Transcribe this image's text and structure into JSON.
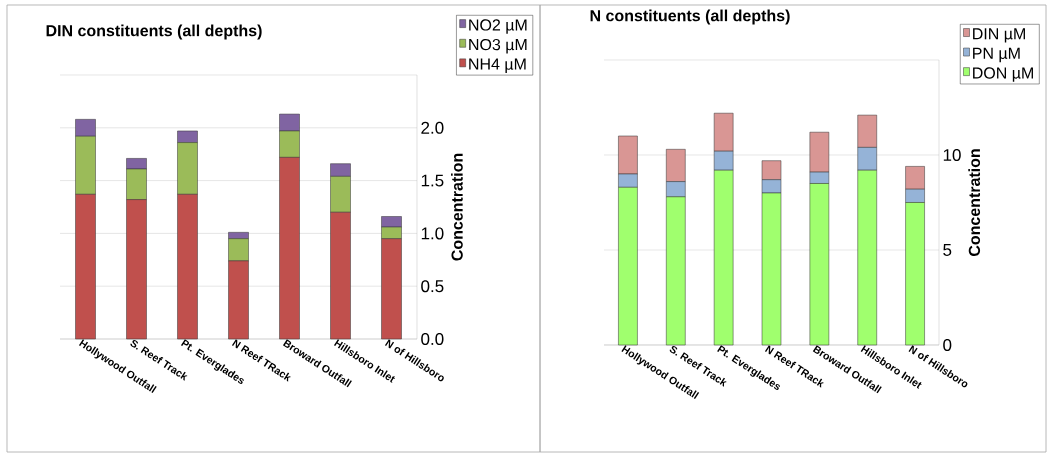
{
  "chart_data": [
    {
      "type": "bar",
      "stacked": true,
      "title": "DIN constituents (all depths)",
      "ylabel": "Concentration",
      "categories": [
        "Hollywood Outfall",
        "S. Reef Track",
        "Pt. Everglades",
        "N Reef TRack",
        "Broward Outfall",
        "Hillsboro Inlet",
        "N of Hillsboro"
      ],
      "series": [
        {
          "name": "NH4 µM",
          "color": "#c0504d",
          "values": [
            1.37,
            1.32,
            1.37,
            0.74,
            1.72,
            1.2,
            0.95
          ]
        },
        {
          "name": "NO3 µM",
          "color": "#9bbb59",
          "values": [
            0.55,
            0.29,
            0.49,
            0.21,
            0.25,
            0.34,
            0.11
          ]
        },
        {
          "name": "NO2 µM",
          "color": "#8064a2",
          "values": [
            0.16,
            0.1,
            0.11,
            0.06,
            0.16,
            0.12,
            0.1
          ]
        }
      ],
      "ylim": [
        0,
        2.5
      ],
      "yticks": [
        {
          "value": 0,
          "label": "0.0"
        },
        {
          "value": 0.5,
          "label": "0.5"
        },
        {
          "value": 1,
          "label": "1.0"
        },
        {
          "value": 1.5,
          "label": "1.5"
        },
        {
          "value": 2,
          "label": "2.0"
        },
        {
          "value": 2.5,
          "label": null
        }
      ],
      "grid": "y",
      "legend": "top right"
    },
    {
      "type": "bar",
      "stacked": true,
      "title": "N constituents (all depths)",
      "ylabel": "Concentration",
      "categories": [
        "Hollywood Outfall",
        "S. Reef Track",
        "Pt. Everglades",
        "N Reef TRack",
        "Broward Outfall",
        "Hillsboro Inlet",
        "N of Hillsboro"
      ],
      "series": [
        {
          "name": "DON µM",
          "color": "#a0ff6e",
          "values": [
            8.3,
            7.8,
            9.2,
            8.0,
            8.5,
            9.2,
            7.5
          ]
        },
        {
          "name": "PN µM",
          "color": "#95b3d7",
          "values": [
            0.7,
            0.8,
            1.0,
            0.7,
            0.6,
            1.2,
            0.7
          ]
        },
        {
          "name": "DIN µM",
          "color": "#d99694",
          "values": [
            2.0,
            1.7,
            2.0,
            1.0,
            2.1,
            1.7,
            1.2
          ]
        }
      ],
      "ylim": [
        0,
        15
      ],
      "yticks": [
        0,
        5,
        10,
        {
          "value": 15,
          "label": null
        }
      ],
      "grid": "y",
      "legend": "top right"
    }
  ]
}
